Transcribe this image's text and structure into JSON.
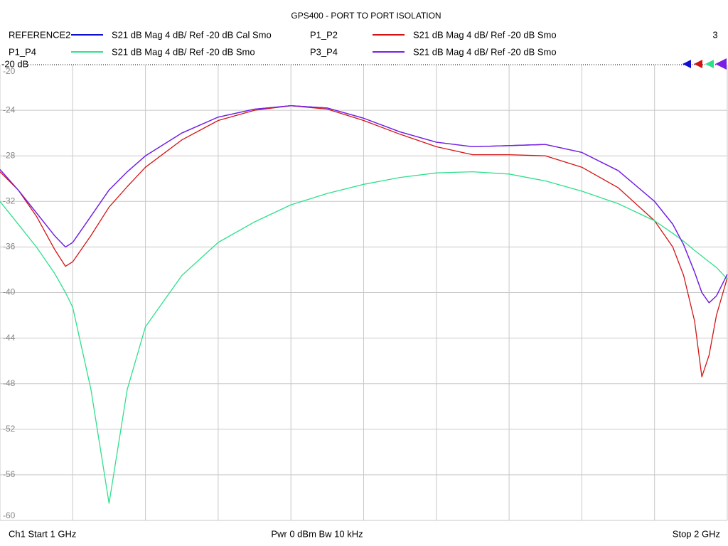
{
  "chart_data": {
    "type": "line",
    "title": "GPS400 - PORT TO PORT ISOLATION",
    "reference_label": "-20 dB",
    "trace_count": "3",
    "footer_start": "Ch1  Start  1 GHz",
    "footer_center": "Pwr  0 dBm  Bw  10 kHz",
    "footer_stop": "Stop  2 GHz",
    "xlim": [
      1.0,
      2.0
    ],
    "ylim": [
      -60,
      -20
    ],
    "yticks": [
      -20,
      -24,
      -28,
      -32,
      -36,
      -40,
      -44,
      -48,
      -52,
      -56,
      -60
    ],
    "grid": true,
    "x": [
      1.0,
      1.025,
      1.05,
      1.075,
      1.09,
      1.1,
      1.125,
      1.15,
      1.175,
      1.2,
      1.25,
      1.3,
      1.35,
      1.4,
      1.45,
      1.5,
      1.55,
      1.6,
      1.65,
      1.7,
      1.75,
      1.8,
      1.85,
      1.9,
      1.925,
      1.94,
      1.955,
      1.965,
      1.975,
      1.985,
      2.0
    ],
    "series": [
      {
        "name": "REFERENCE2",
        "description": "S21  dB Mag  4 dB/ Ref -20 dB  Cal Smo",
        "color": "#1010d0",
        "values": [
          -29.2,
          -31.0,
          -33.0,
          -35.0,
          -36.0,
          -35.6,
          -33.3,
          -31.0,
          -29.4,
          -28.0,
          -26.0,
          -24.6,
          -23.9,
          -23.6,
          -23.8,
          -24.7,
          -25.9,
          -26.8,
          -27.2,
          -27.1,
          -27.0,
          -27.7,
          -29.3,
          -32.0,
          -34.0,
          -35.8,
          -38.2,
          -40.0,
          -40.9,
          -40.3,
          -38.4
        ]
      },
      {
        "name": "P1_P2",
        "description": "S21  dB Mag  4 dB/ Ref -20 dB  Smo",
        "color": "#d41414",
        "values": [
          -29.4,
          -31.0,
          -33.3,
          -36.2,
          -37.7,
          -37.3,
          -35.0,
          -32.5,
          -30.7,
          -29.0,
          -26.6,
          -24.9,
          -24.0,
          -23.6,
          -23.9,
          -24.9,
          -26.1,
          -27.2,
          -27.9,
          -27.9,
          -28.0,
          -29.0,
          -30.8,
          -33.7,
          -36.0,
          -38.5,
          -42.5,
          -47.4,
          -45.5,
          -42.0,
          -38.7
        ]
      },
      {
        "name": "P1_P4",
        "description": "S21  dB Mag  4 dB/ Ref -20 dB  Smo",
        "color": "#2ee08c",
        "values": [
          -32.0,
          -34.0,
          -36.0,
          -38.3,
          -40.0,
          -41.3,
          -48.5,
          -58.5,
          -48.5,
          -43.0,
          -38.5,
          -35.6,
          -33.8,
          -32.3,
          -31.3,
          -30.5,
          -29.9,
          -29.5,
          -29.4,
          -29.6,
          -30.2,
          -31.1,
          -32.2,
          -33.7,
          -34.8,
          -35.5,
          -36.3,
          -36.8,
          -37.3,
          -37.8,
          -38.8
        ]
      },
      {
        "name": "P3_P4",
        "description": "S21  dB Mag  4 dB/ Ref -20 dB  Smo",
        "color": "#7a1ee6",
        "values": [
          -29.2,
          -31.0,
          -33.0,
          -35.0,
          -36.0,
          -35.6,
          -33.3,
          -31.0,
          -29.4,
          -28.0,
          -26.0,
          -24.6,
          -23.9,
          -23.6,
          -23.8,
          -24.7,
          -25.9,
          -26.8,
          -27.2,
          -27.1,
          -27.0,
          -27.7,
          -29.3,
          -32.0,
          -34.0,
          -35.8,
          -38.2,
          -40.0,
          -40.9,
          -40.3,
          -38.4
        ]
      }
    ]
  }
}
